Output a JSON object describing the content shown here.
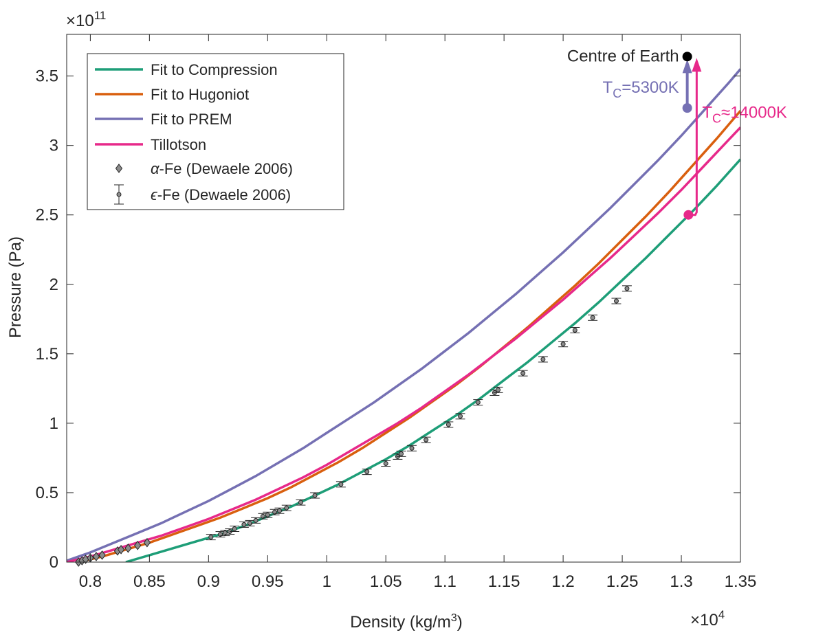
{
  "chart_data": {
    "type": "line",
    "xlabel": "Density (kg/m",
    "xlabel_sup": "3",
    "xlabel_end": ")",
    "ylabel": "Pressure (Pa)",
    "x_exponent_base": "×10",
    "x_exponent_power": "4",
    "y_exponent_base": "×10",
    "y_exponent_power": "11",
    "xlim": [
      0.78,
      1.35
    ],
    "ylim": [
      0,
      3.8
    ],
    "xticks": [
      0.8,
      0.85,
      0.9,
      0.95,
      1.0,
      1.05,
      1.1,
      1.15,
      1.2,
      1.25,
      1.3,
      1.35
    ],
    "xtick_labels": [
      "0.8",
      "0.85",
      "0.9",
      "0.95",
      "1",
      "1.05",
      "1.1",
      "1.15",
      "1.2",
      "1.25",
      "1.3",
      "1.35"
    ],
    "yticks": [
      0,
      0.5,
      1.0,
      1.5,
      2.0,
      2.5,
      3.0,
      3.5
    ],
    "ytick_labels": [
      "0",
      "0.5",
      "1",
      "1.5",
      "2",
      "2.5",
      "3",
      "3.5"
    ],
    "grid": false,
    "legend_position": "top-left",
    "series": [
      {
        "name": "Fit to Compression",
        "color": "#1e9e78",
        "x": [
          0.83,
          0.85,
          0.87,
          0.89,
          0.91,
          0.93,
          0.95,
          0.97,
          0.99,
          1.01,
          1.03,
          1.05,
          1.07,
          1.09,
          1.11,
          1.13,
          1.15,
          1.17,
          1.19,
          1.21,
          1.23,
          1.25,
          1.27,
          1.29,
          1.31,
          1.33,
          1.35
        ],
        "y": [
          0,
          0.05,
          0.1,
          0.15,
          0.2,
          0.26,
          0.33,
          0.4,
          0.48,
          0.56,
          0.65,
          0.74,
          0.84,
          0.95,
          1.06,
          1.18,
          1.31,
          1.44,
          1.58,
          1.72,
          1.87,
          2.03,
          2.19,
          2.36,
          2.53,
          2.71,
          2.9
        ]
      },
      {
        "name": "Fit to Hugoniot",
        "color": "#d95f0e",
        "x": [
          0.79,
          0.81,
          0.83,
          0.85,
          0.87,
          0.89,
          0.91,
          0.93,
          0.95,
          0.97,
          0.99,
          1.01,
          1.03,
          1.05,
          1.07,
          1.09,
          1.11,
          1.13,
          1.15,
          1.17,
          1.19,
          1.21,
          1.23,
          1.25,
          1.27,
          1.29,
          1.31,
          1.33,
          1.35
        ],
        "y": [
          0,
          0.04,
          0.09,
          0.14,
          0.2,
          0.26,
          0.32,
          0.39,
          0.46,
          0.54,
          0.63,
          0.72,
          0.82,
          0.93,
          1.04,
          1.16,
          1.28,
          1.41,
          1.55,
          1.69,
          1.84,
          1.99,
          2.15,
          2.32,
          2.49,
          2.67,
          2.86,
          3.05,
          3.25
        ]
      },
      {
        "name": "Fit to PREM",
        "color": "#7570b3",
        "x": [
          0.78,
          0.8,
          0.82,
          0.84,
          0.86,
          0.88,
          0.9,
          0.92,
          0.94,
          0.96,
          0.98,
          1.0,
          1.02,
          1.04,
          1.06,
          1.08,
          1.1,
          1.12,
          1.14,
          1.16,
          1.18,
          1.2,
          1.22,
          1.24,
          1.26,
          1.28,
          1.3,
          1.32,
          1.34,
          1.35
        ],
        "y": [
          0.01,
          0.07,
          0.14,
          0.21,
          0.28,
          0.36,
          0.44,
          0.53,
          0.62,
          0.72,
          0.82,
          0.93,
          1.04,
          1.15,
          1.27,
          1.39,
          1.52,
          1.65,
          1.79,
          1.93,
          2.08,
          2.23,
          2.39,
          2.55,
          2.72,
          2.89,
          3.07,
          3.26,
          3.45,
          3.55
        ]
      },
      {
        "name": "Tillotson",
        "color": "#e7298a",
        "x": [
          0.78,
          0.8,
          0.82,
          0.84,
          0.86,
          0.88,
          0.9,
          0.92,
          0.94,
          0.96,
          0.98,
          1.0,
          1.02,
          1.04,
          1.06,
          1.08,
          1.1,
          1.12,
          1.14,
          1.16,
          1.18,
          1.2,
          1.22,
          1.24,
          1.26,
          1.28,
          1.3,
          1.32,
          1.34,
          1.35
        ],
        "y": [
          0,
          0.04,
          0.09,
          0.14,
          0.19,
          0.25,
          0.31,
          0.38,
          0.45,
          0.53,
          0.61,
          0.7,
          0.8,
          0.9,
          1.0,
          1.11,
          1.23,
          1.35,
          1.48,
          1.61,
          1.75,
          1.89,
          2.04,
          2.19,
          2.35,
          2.51,
          2.68,
          2.86,
          3.04,
          3.13
        ]
      }
    ],
    "scatter": [
      {
        "name": "α-Fe (Dewaele 2006)",
        "name_greek": "α",
        "name_rest": "-Fe (Dewaele 2006)",
        "marker": "diamond",
        "points": [
          [
            0.79,
            0.0
          ],
          [
            0.793,
            0.01
          ],
          [
            0.796,
            0.02
          ],
          [
            0.8,
            0.03
          ],
          [
            0.805,
            0.04
          ],
          [
            0.81,
            0.05
          ],
          [
            0.823,
            0.08
          ],
          [
            0.826,
            0.09
          ],
          [
            0.832,
            0.1
          ],
          [
            0.84,
            0.12
          ],
          [
            0.848,
            0.14
          ]
        ]
      },
      {
        "name": "ε-Fe (Dewaele 2006)",
        "name_greek": "ϵ",
        "name_rest": "-Fe (Dewaele 2006)",
        "marker": "circle-errorbar",
        "points": [
          [
            0.902,
            0.18
          ],
          [
            0.91,
            0.2
          ],
          [
            0.914,
            0.21
          ],
          [
            0.918,
            0.22
          ],
          [
            0.922,
            0.24
          ],
          [
            0.93,
            0.27
          ],
          [
            0.935,
            0.28
          ],
          [
            0.94,
            0.3
          ],
          [
            0.946,
            0.33
          ],
          [
            0.95,
            0.34
          ],
          [
            0.956,
            0.36
          ],
          [
            0.96,
            0.37
          ],
          [
            0.966,
            0.39
          ],
          [
            0.978,
            0.43
          ],
          [
            0.99,
            0.48
          ],
          [
            1.012,
            0.56
          ],
          [
            1.034,
            0.65
          ],
          [
            1.05,
            0.71
          ],
          [
            1.06,
            0.76
          ],
          [
            1.063,
            0.78
          ],
          [
            1.072,
            0.82
          ],
          [
            1.084,
            0.88
          ],
          [
            1.103,
            0.99
          ],
          [
            1.113,
            1.05
          ],
          [
            1.128,
            1.15
          ],
          [
            1.142,
            1.22
          ],
          [
            1.145,
            1.24
          ],
          [
            1.166,
            1.36
          ],
          [
            1.183,
            1.46
          ],
          [
            1.2,
            1.57
          ],
          [
            1.21,
            1.67
          ],
          [
            1.225,
            1.76
          ],
          [
            1.245,
            1.88
          ],
          [
            1.254,
            1.97
          ]
        ]
      }
    ],
    "annotations": {
      "centre_label": "Centre of Earth",
      "centre_point": [
        1.305,
        3.64
      ],
      "prem_point": [
        1.305,
        3.27
      ],
      "tillotson_point": [
        1.306,
        2.5
      ],
      "tc_prem_main": "T",
      "tc_prem_sub": "C",
      "tc_prem_value": "=5300K",
      "tc_till_main": "T",
      "tc_till_sub": "C",
      "tc_till_value": "≈14000K",
      "black_color": "#000000",
      "prem_color": "#7570b3",
      "till_color": "#e7298a"
    }
  }
}
